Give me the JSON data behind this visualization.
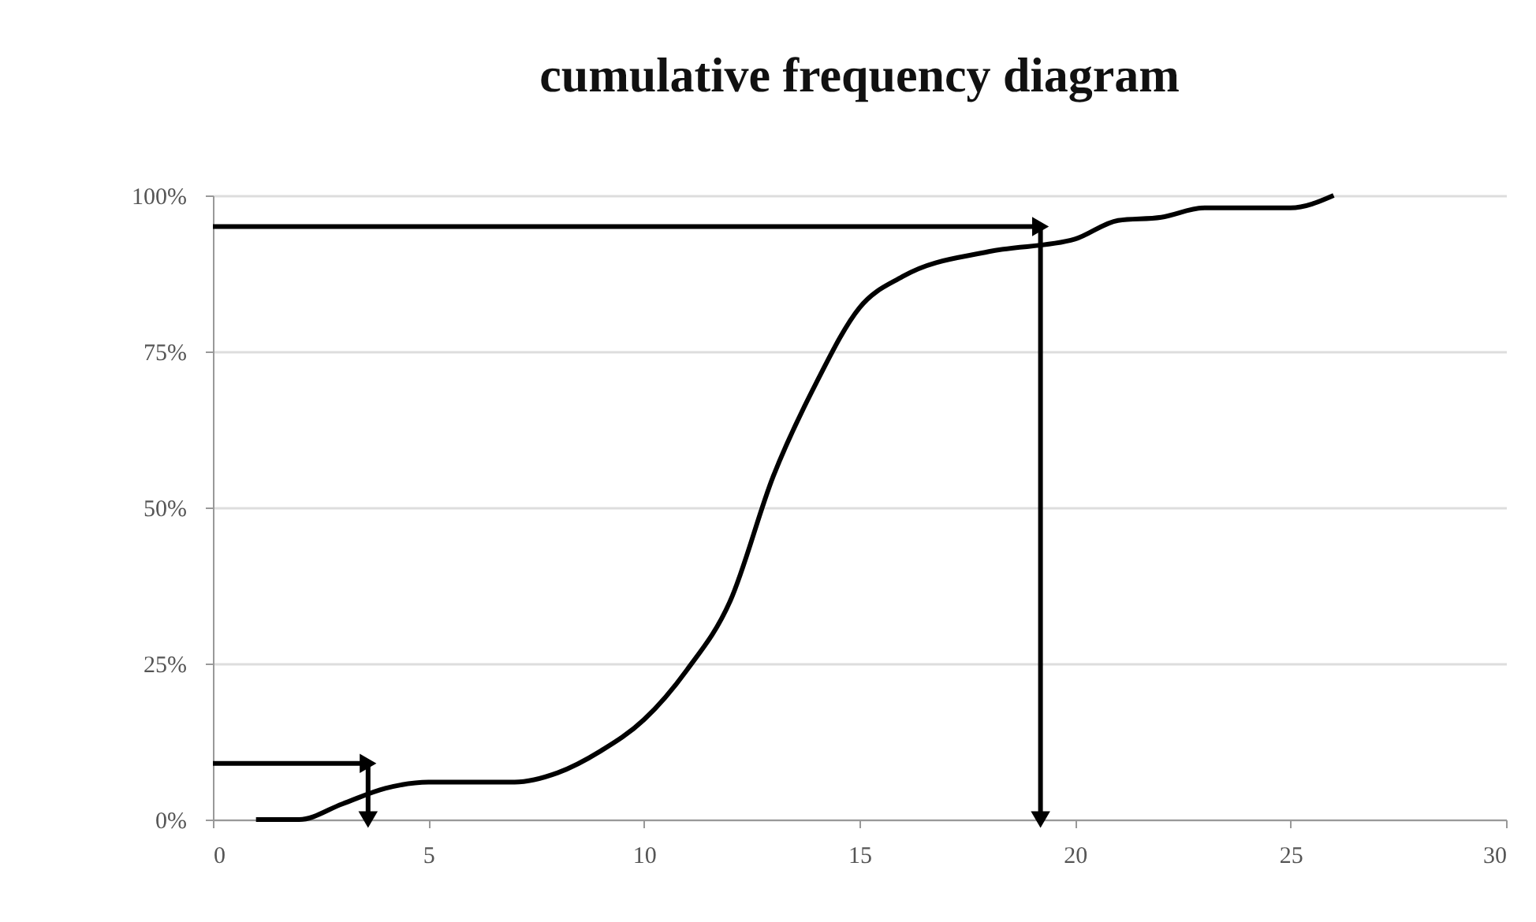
{
  "chart_data": {
    "type": "line",
    "title": "cumulative frequency diagram",
    "x": [
      1,
      2,
      3,
      4,
      5,
      7,
      8,
      9,
      10,
      11,
      12,
      13,
      14,
      15,
      16,
      18,
      20,
      21,
      22,
      23,
      25,
      26
    ],
    "series": [
      {
        "color": "#000000",
        "values": [
          0,
          0,
          2.5,
          5,
          6,
          6,
          7.5,
          11,
          16,
          24,
          35,
          55,
          70,
          82,
          87,
          91,
          93,
          96,
          96.5,
          98,
          98,
          100
        ]
      }
    ],
    "xlim": [
      0,
      30
    ],
    "xticks": [
      0,
      5,
      10,
      15,
      20,
      25,
      30
    ],
    "ylim": [
      0,
      100
    ],
    "yticks": [
      {
        "value": 0,
        "label": "0%"
      },
      {
        "value": 25,
        "label": "25%"
      },
      {
        "value": 50,
        "label": "50%"
      },
      {
        "value": 75,
        "label": "75%"
      },
      {
        "value": 100,
        "label": "100%"
      }
    ],
    "grid": "y",
    "marker": "none",
    "line_style": "solid",
    "ref_lines": [
      {
        "axis": "y",
        "value": 95,
        "color": "#000000"
      },
      {
        "axis": "x",
        "value": 19.2,
        "color": "#000000"
      },
      {
        "axis": "y",
        "value": 9,
        "color": "#000000"
      },
      {
        "axis": "x",
        "value": 3.6,
        "color": "#000000"
      }
    ]
  }
}
